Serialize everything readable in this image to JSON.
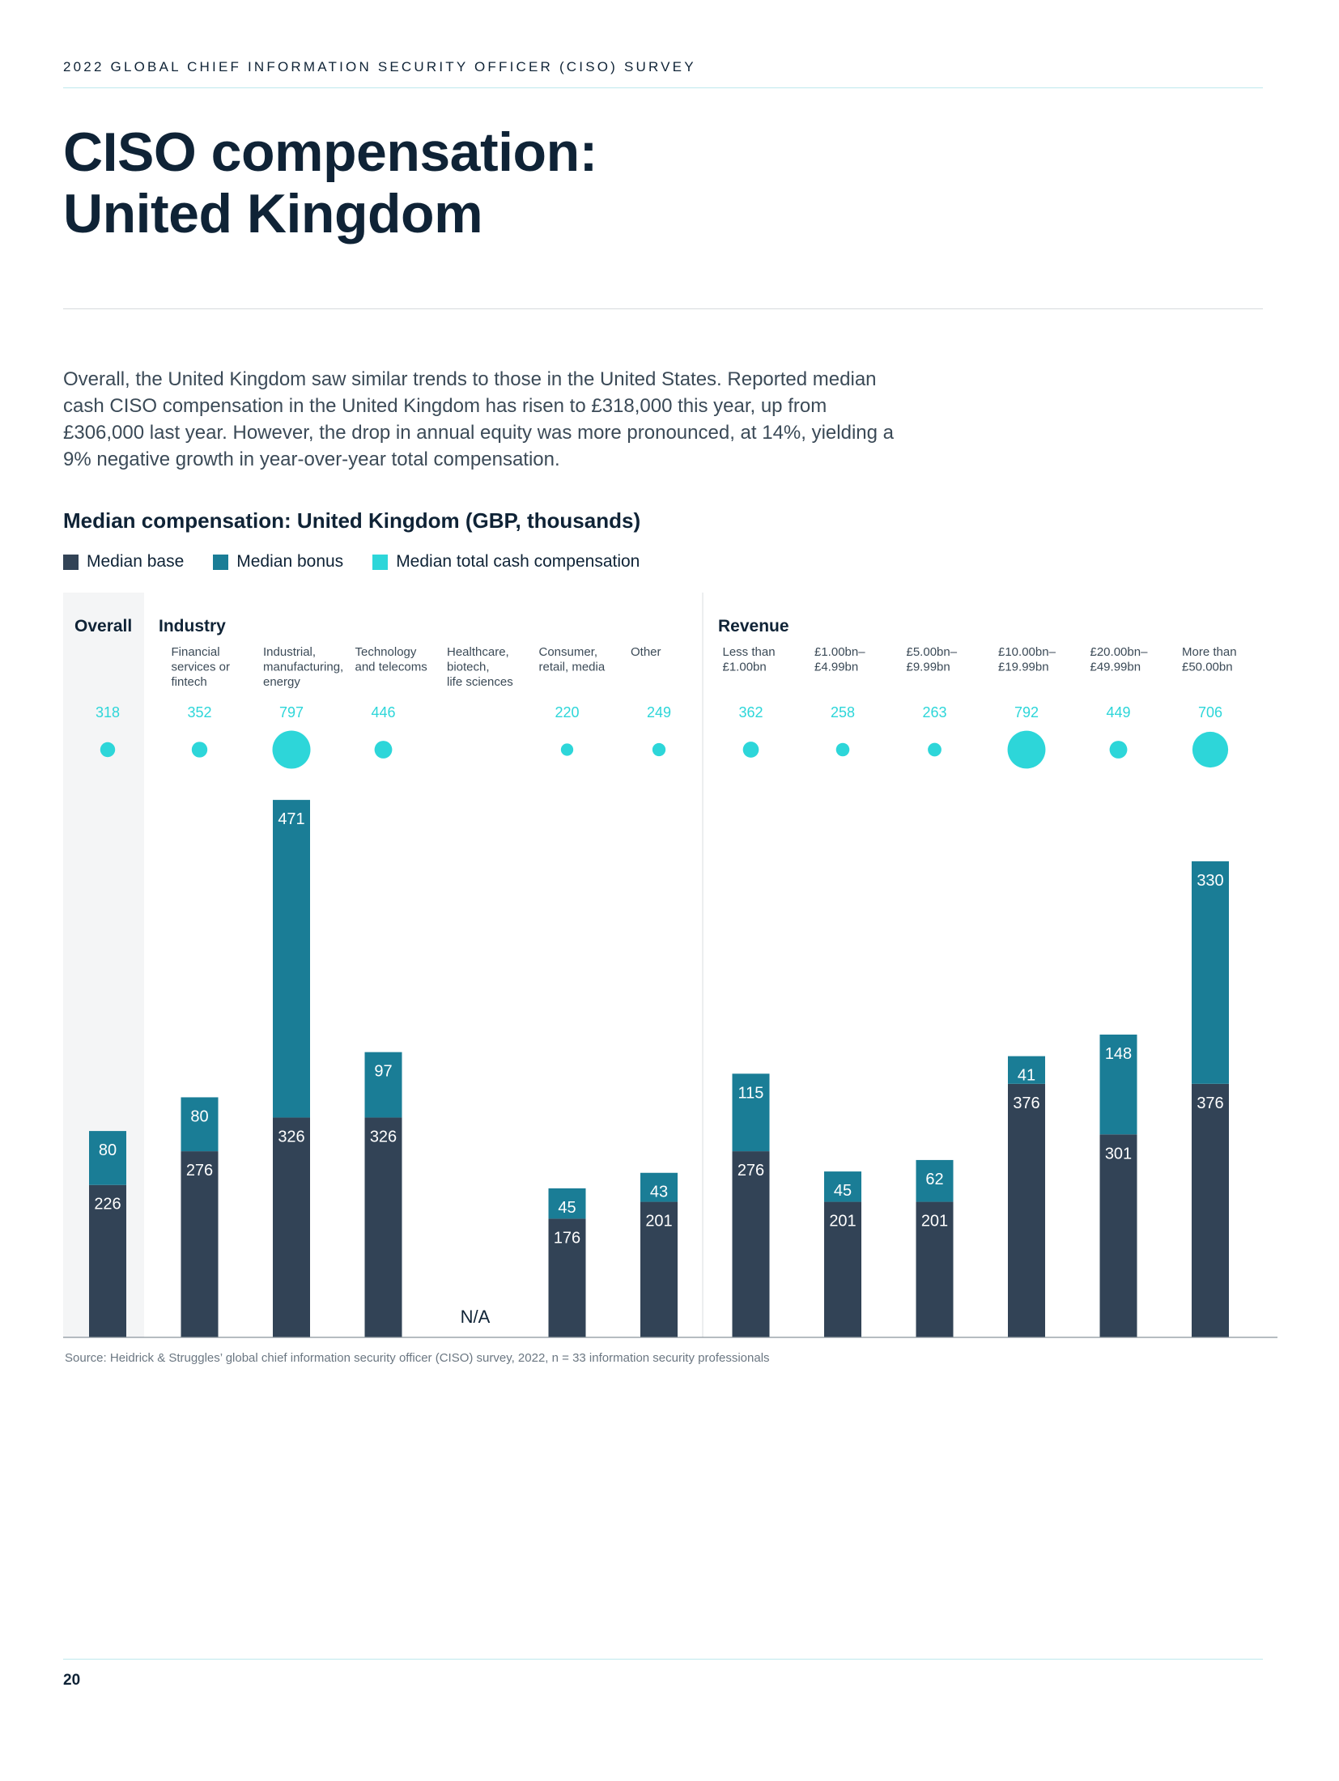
{
  "header": "2022 GLOBAL CHIEF INFORMATION SECURITY OFFICER (CISO) SURVEY",
  "title_line1": "CISO compensation:",
  "title_line2": "United Kingdom",
  "intro": "Overall, the United Kingdom saw similar trends to those in the United States. Reported median cash CISO compensation in the United Kingdom has risen to £318,000 this year, up from £306,000 last year. However, the drop in annual equity was more pronounced, at 14%, yielding a 9% negative growth in year-over-year total compensation.",
  "source": "Source: Heidrick & Struggles’ global chief information security officer (CISO) survey, 2022, n = 33 information security professionals",
  "page_number": "20",
  "colors": {
    "base": "#324356",
    "bonus": "#1a7d96",
    "total": "#2dd6d9",
    "ink": "#0f2336",
    "overall_bg": "#f4f5f6"
  },
  "chart_data": {
    "type": "bar",
    "stacked": true,
    "title": "Median compensation: United Kingdom (GBP, thousands)",
    "legend": [
      "Median base",
      "Median bonus",
      "Median total cash compensation"
    ],
    "legend_placement": "top-left",
    "groups": [
      {
        "name": "Overall",
        "categories": [
          0
        ]
      },
      {
        "name": "Industry",
        "categories": [
          1,
          2,
          3,
          4,
          5,
          6
        ]
      },
      {
        "name": "Revenue",
        "categories": [
          7,
          8,
          9,
          10,
          11,
          12
        ]
      }
    ],
    "categories": [
      {
        "label": [],
        "base": 226,
        "bonus": 80,
        "total": 318
      },
      {
        "label": [
          "Financial",
          "services or",
          "fintech"
        ],
        "base": 276,
        "bonus": 80,
        "total": 352
      },
      {
        "label": [
          "Industrial,",
          "manufacturing,",
          "energy"
        ],
        "base": 326,
        "bonus": 471,
        "total": 797
      },
      {
        "label": [
          "Technology",
          "and telecoms"
        ],
        "base": 326,
        "bonus": 97,
        "total": 446
      },
      {
        "label": [
          "Healthcare,",
          "biotech,",
          "life sciences"
        ],
        "base": null,
        "bonus": null,
        "total": null,
        "na": "N/A"
      },
      {
        "label": [
          "Consumer,",
          "retail, media"
        ],
        "base": 176,
        "bonus": 45,
        "total": 220
      },
      {
        "label": [
          "Other"
        ],
        "base": 201,
        "bonus": 43,
        "total": 249
      },
      {
        "label": [
          "Less than",
          "£1.00bn"
        ],
        "base": 276,
        "bonus": 115,
        "total": 362
      },
      {
        "label": [
          "£1.00bn–",
          "£4.99bn"
        ],
        "base": 201,
        "bonus": 45,
        "total": 258
      },
      {
        "label": [
          "£5.00bn–",
          "£9.99bn"
        ],
        "base": 201,
        "bonus": 62,
        "total": 263
      },
      {
        "label": [
          "£10.00bn–",
          "£19.99bn"
        ],
        "base": 376,
        "bonus": 41,
        "total": 792
      },
      {
        "label": [
          "£20.00bn–",
          "£49.99bn"
        ],
        "base": 301,
        "bonus": 148,
        "total": 449
      },
      {
        "label": [
          "More than",
          "£50.00bn"
        ],
        "base": 376,
        "bonus": 330,
        "total": 706
      }
    ],
    "ylim": [
      0,
      850
    ]
  }
}
